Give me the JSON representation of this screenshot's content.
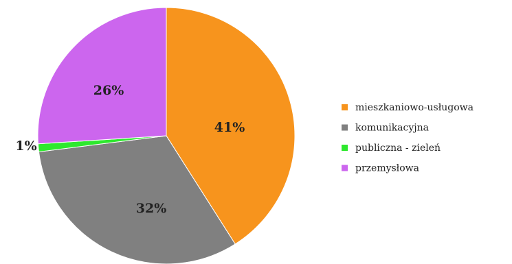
{
  "chart_data": {
    "type": "pie",
    "title": "",
    "slices": [
      {
        "label": "mieszkaniowo-usługowa",
        "value": 41,
        "display": "41%",
        "color": "#f7941d"
      },
      {
        "label": "komunikacyjna",
        "value": 32,
        "display": "32%",
        "color": "#808080"
      },
      {
        "label": "publiczna - zieleń",
        "value": 1,
        "display": "1%",
        "color": "#2ee82e"
      },
      {
        "label": "przemysłowa",
        "value": 26,
        "display": "26%",
        "color": "#cc66ee"
      }
    ],
    "start_angle_deg": 0,
    "direction": "clockwise",
    "legend": {
      "placement": "right",
      "entries": [
        "mieszkaniowo-usługowa",
        "komunikacyjna",
        "publiczna - zieleń",
        "przemysłowa"
      ]
    }
  }
}
